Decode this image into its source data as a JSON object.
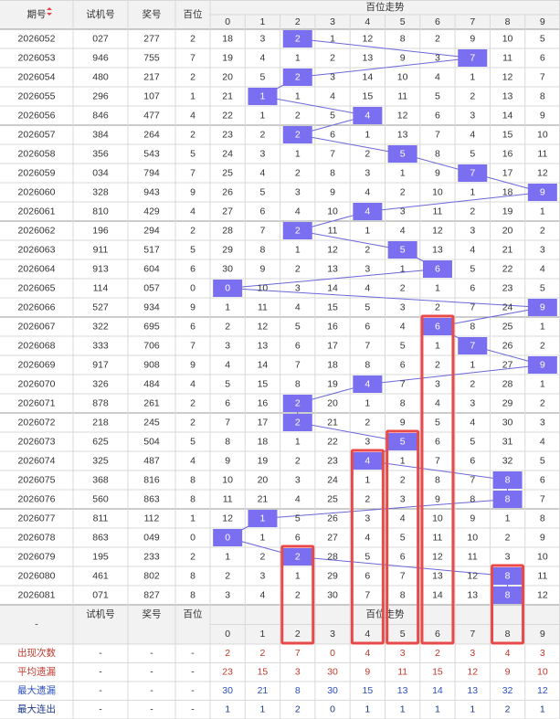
{
  "header": {
    "issue": "期号",
    "test": "试机号",
    "prize": "奖号",
    "hundred": "百位",
    "trend": "百位走势",
    "digits": [
      0,
      1,
      2,
      3,
      4,
      5,
      6,
      7,
      8,
      9
    ]
  },
  "footer_dash": "-",
  "table": {
    "rows": [
      {
        "issue": "2026052",
        "test": "027",
        "prize": "277",
        "hundred": 2,
        "cells": [
          18,
          3,
          2,
          1,
          12,
          8,
          2,
          9,
          10,
          5
        ]
      },
      {
        "issue": "2026053",
        "test": "946",
        "prize": "755",
        "hundred": 7,
        "cells": [
          19,
          4,
          1,
          2,
          13,
          9,
          3,
          7,
          11,
          6
        ]
      },
      {
        "issue": "2026054",
        "test": "480",
        "prize": "217",
        "hundred": 2,
        "cells": [
          20,
          5,
          2,
          3,
          14,
          10,
          4,
          1,
          12,
          7
        ]
      },
      {
        "issue": "2026055",
        "test": "296",
        "prize": "107",
        "hundred": 1,
        "cells": [
          21,
          1,
          1,
          4,
          15,
          11,
          5,
          2,
          13,
          8
        ]
      },
      {
        "issue": "2026056",
        "test": "846",
        "prize": "477",
        "hundred": 4,
        "cells": [
          22,
          1,
          2,
          5,
          4,
          12,
          6,
          3,
          14,
          9
        ]
      },
      {
        "issue": "2026057",
        "test": "384",
        "prize": "264",
        "hundred": 2,
        "cells": [
          23,
          2,
          2,
          6,
          1,
          13,
          7,
          4,
          15,
          10
        ]
      },
      {
        "issue": "2026058",
        "test": "356",
        "prize": "543",
        "hundred": 5,
        "cells": [
          24,
          3,
          1,
          7,
          2,
          5,
          8,
          5,
          16,
          11
        ]
      },
      {
        "issue": "2026059",
        "test": "034",
        "prize": "794",
        "hundred": 7,
        "cells": [
          25,
          4,
          2,
          8,
          3,
          1,
          9,
          7,
          17,
          12
        ]
      },
      {
        "issue": "2026060",
        "test": "328",
        "prize": "943",
        "hundred": 9,
        "cells": [
          26,
          5,
          3,
          9,
          4,
          2,
          10,
          1,
          18,
          9
        ]
      },
      {
        "issue": "2026061",
        "test": "810",
        "prize": "429",
        "hundred": 4,
        "cells": [
          27,
          6,
          4,
          10,
          4,
          3,
          11,
          2,
          19,
          1
        ]
      },
      {
        "issue": "2026062",
        "test": "196",
        "prize": "294",
        "hundred": 2,
        "cells": [
          28,
          7,
          2,
          11,
          1,
          4,
          12,
          3,
          20,
          2
        ]
      },
      {
        "issue": "2026063",
        "test": "911",
        "prize": "517",
        "hundred": 5,
        "cells": [
          29,
          8,
          1,
          12,
          2,
          5,
          13,
          4,
          21,
          3
        ]
      },
      {
        "issue": "2026064",
        "test": "913",
        "prize": "604",
        "hundred": 6,
        "cells": [
          30,
          9,
          2,
          13,
          3,
          1,
          6,
          5,
          22,
          4
        ]
      },
      {
        "issue": "2026065",
        "test": "114",
        "prize": "057",
        "hundred": 0,
        "cells": [
          0,
          10,
          3,
          14,
          4,
          2,
          1,
          6,
          23,
          5
        ]
      },
      {
        "issue": "2026066",
        "test": "527",
        "prize": "934",
        "hundred": 9,
        "cells": [
          1,
          11,
          4,
          15,
          5,
          3,
          2,
          7,
          24,
          9
        ]
      },
      {
        "issue": "2026067",
        "test": "322",
        "prize": "695",
        "hundred": 6,
        "cells": [
          2,
          12,
          5,
          16,
          6,
          4,
          6,
          8,
          25,
          1
        ]
      },
      {
        "issue": "2026068",
        "test": "333",
        "prize": "706",
        "hundred": 7,
        "cells": [
          3,
          13,
          6,
          17,
          7,
          5,
          1,
          7,
          26,
          2
        ]
      },
      {
        "issue": "2026069",
        "test": "917",
        "prize": "908",
        "hundred": 9,
        "cells": [
          4,
          14,
          7,
          18,
          8,
          6,
          2,
          1,
          27,
          9
        ]
      },
      {
        "issue": "2026070",
        "test": "326",
        "prize": "484",
        "hundred": 4,
        "cells": [
          5,
          15,
          8,
          19,
          4,
          7,
          3,
          2,
          28,
          1
        ]
      },
      {
        "issue": "2026071",
        "test": "878",
        "prize": "261",
        "hundred": 2,
        "cells": [
          6,
          16,
          2,
          20,
          1,
          8,
          4,
          3,
          29,
          2
        ]
      },
      {
        "issue": "2026072",
        "test": "218",
        "prize": "245",
        "hundred": 2,
        "cells": [
          7,
          17,
          2,
          21,
          2,
          9,
          5,
          4,
          30,
          3
        ]
      },
      {
        "issue": "2026073",
        "test": "625",
        "prize": "504",
        "hundred": 5,
        "cells": [
          8,
          18,
          1,
          22,
          3,
          5,
          6,
          5,
          31,
          4
        ]
      },
      {
        "issue": "2026074",
        "test": "325",
        "prize": "487",
        "hundred": 4,
        "cells": [
          9,
          19,
          2,
          23,
          4,
          1,
          7,
          6,
          32,
          5
        ]
      },
      {
        "issue": "2026075",
        "test": "368",
        "prize": "816",
        "hundred": 8,
        "cells": [
          10,
          20,
          3,
          24,
          1,
          2,
          8,
          7,
          8,
          6
        ]
      },
      {
        "issue": "2026076",
        "test": "560",
        "prize": "863",
        "hundred": 8,
        "cells": [
          11,
          21,
          4,
          25,
          2,
          3,
          9,
          8,
          8,
          7
        ]
      },
      {
        "issue": "2026077",
        "test": "811",
        "prize": "112",
        "hundred": 1,
        "cells": [
          12,
          1,
          5,
          26,
          3,
          4,
          10,
          9,
          1,
          8
        ]
      },
      {
        "issue": "2026078",
        "test": "863",
        "prize": "049",
        "hundred": 0,
        "cells": [
          0,
          1,
          6,
          27,
          4,
          5,
          11,
          10,
          2,
          9
        ]
      },
      {
        "issue": "2026079",
        "test": "195",
        "prize": "233",
        "hundred": 2,
        "cells": [
          1,
          2,
          2,
          28,
          5,
          6,
          12,
          11,
          3,
          10
        ]
      },
      {
        "issue": "2026080",
        "test": "461",
        "prize": "802",
        "hundred": 8,
        "cells": [
          2,
          3,
          1,
          29,
          6,
          7,
          13,
          12,
          8,
          11
        ]
      },
      {
        "issue": "2026081",
        "test": "071",
        "prize": "827",
        "hundred": 8,
        "cells": [
          3,
          4,
          2,
          30,
          7,
          8,
          14,
          13,
          8,
          12
        ]
      }
    ]
  },
  "stats": [
    {
      "label": "出现次数",
      "values": [
        2,
        2,
        7,
        0,
        4,
        3,
        2,
        3,
        4,
        3
      ]
    },
    {
      "label": "平均遗漏",
      "values": [
        23,
        15,
        3,
        30,
        9,
        11,
        15,
        12,
        9,
        10
      ]
    },
    {
      "label": "最大遗漏",
      "values": [
        30,
        21,
        8,
        30,
        15,
        13,
        14,
        13,
        32,
        12
      ]
    },
    {
      "label": "最大连出",
      "values": [
        1,
        1,
        2,
        0,
        1,
        1,
        1,
        1,
        2,
        1
      ]
    }
  ]
}
